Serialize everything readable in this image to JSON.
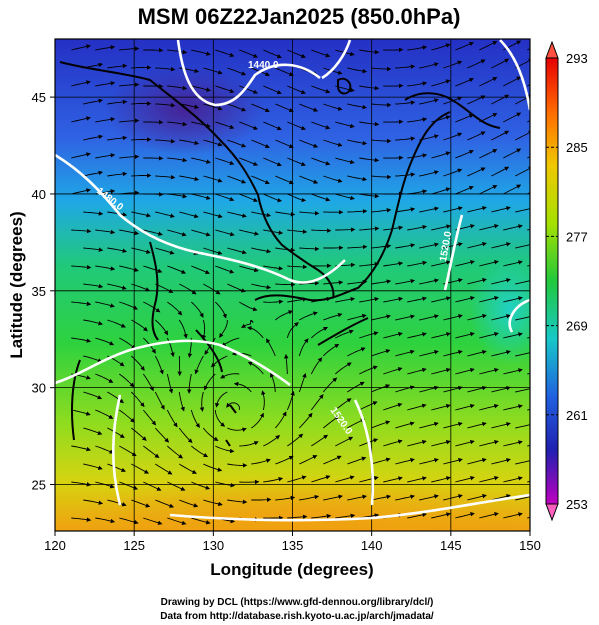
{
  "title": "MSM 06Z22Jan2025 (850.0hPa)",
  "x_axis_title": "Longitude (degrees)",
  "y_axis_title": "Latitude  (degrees)",
  "x_ticks": [
    "120",
    "125",
    "130",
    "135",
    "140",
    "145",
    "150"
  ],
  "y_ticks": [
    "25",
    "30",
    "35",
    "40",
    "45"
  ],
  "colorbar": {
    "labels": [
      "293",
      "285",
      "277",
      "269",
      "261",
      "253"
    ],
    "min": 253,
    "max": 293
  },
  "contours": {
    "labels": [
      "1440.0",
      "1480.0",
      "1520.0",
      "1520.0"
    ]
  },
  "credits": {
    "line1": "Drawing by DCL (https://www.gfd-dennou.org/library/dcl/)",
    "line2": "Data from http://database.rish.kyoto-u.ac.jp/arch/jmadata/"
  },
  "colors": {
    "cold": "#2a3fc9",
    "warm": "#f5b400",
    "contour": "#ffffff",
    "coast": "#000000"
  }
}
